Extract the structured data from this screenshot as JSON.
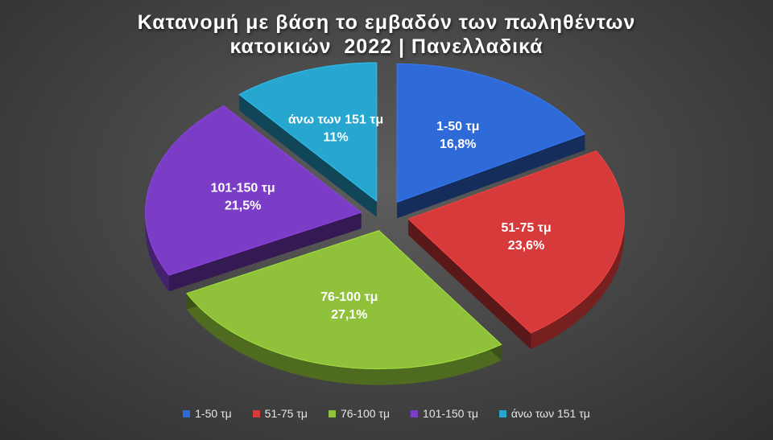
{
  "chart_data": {
    "type": "pie",
    "title_lines": [
      "Κατανομή με βάση το εμβαδόν των πωληθέντων",
      "κατοικιών  2022 | Πανελλαδικά"
    ],
    "slices": [
      {
        "label": "1-50 τμ",
        "value": 16.8,
        "value_label": "16,8%",
        "color": "#2f6bd8"
      },
      {
        "label": "51-75 τμ",
        "value": 23.6,
        "value_label": "23,6%",
        "color": "#d63a3a"
      },
      {
        "label": "76-100 τμ",
        "value": 27.1,
        "value_label": "27,1%",
        "color": "#8fc23a"
      },
      {
        "label": "101-150 τμ",
        "value": 21.5,
        "value_label": "21,5%",
        "color": "#7b3cc6"
      },
      {
        "label": "άνω των 151 τμ",
        "value": 11,
        "value_label": "11%",
        "color": "#27a7cf"
      }
    ],
    "legend_position": "bottom",
    "style": "3d-exploded"
  }
}
